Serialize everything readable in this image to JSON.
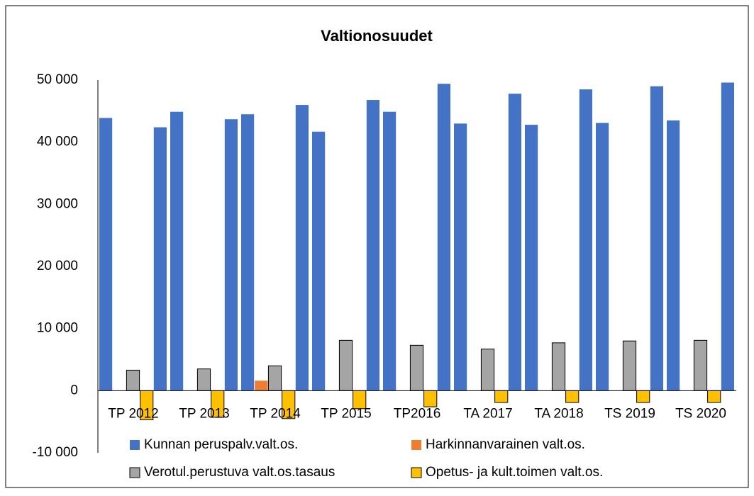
{
  "chart_data": {
    "type": "bar",
    "title": "Valtionosuudet",
    "categories": [
      "TP 2012",
      "TP 2013",
      "TP 2014",
      "TP 2015",
      "TP2016",
      "TA 2017",
      "TA 2018",
      "TS 2019",
      "TS 2020"
    ],
    "series": [
      {
        "name": "Kunnan peruspalv.valt.os.",
        "color": "#4472c4",
        "values": [
          43900,
          44900,
          44500,
          41700,
          44900,
          43000,
          42800,
          43100,
          43500
        ]
      },
      {
        "name": "Harkinnanvarainen valt.os.",
        "color": "#ed7d31",
        "values": [
          0,
          0,
          1600,
          0,
          0,
          0,
          0,
          0,
          0
        ]
      },
      {
        "name": "Verotul.perustuva valt.os.tasaus",
        "color": "#a5a5a5",
        "values": [
          3300,
          3500,
          4000,
          8100,
          7300,
          6700,
          7700,
          8000,
          8100
        ]
      },
      {
        "name": "Opetus- ja kult.toimen valt.os.",
        "color": "#ffc000",
        "values": [
          -4700,
          -4300,
          -4500,
          -2900,
          -2600,
          -1900,
          -1900,
          -1900,
          -1900
        ]
      },
      {
        "color": "#4472c4",
        "values": [
          42400,
          43700,
          46000,
          46800,
          49400,
          47800,
          48500,
          49000,
          49600
        ]
      }
    ],
    "ylim": [
      -10000,
      50000
    ],
    "yticks": [
      {
        "value": -10000,
        "label": "-10 000"
      },
      0,
      {
        "value": 10000,
        "label": "10 000"
      },
      {
        "value": 20000,
        "label": "20 000"
      },
      {
        "value": 30000,
        "label": "30 000"
      },
      {
        "value": 40000,
        "label": "40 000"
      },
      {
        "value": 50000,
        "label": "50 000"
      }
    ],
    "grid": false
  }
}
